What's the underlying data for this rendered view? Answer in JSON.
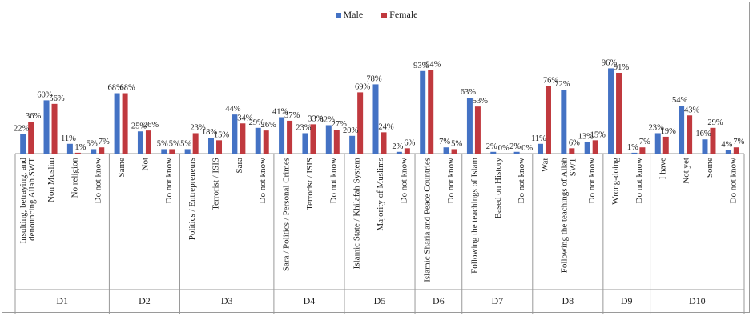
{
  "chart_data": {
    "type": "bar",
    "legend_position": "top-center",
    "series": [
      {
        "name": "Male",
        "color": "#4472C4"
      },
      {
        "name": "Female",
        "color": "#C0393E"
      }
    ],
    "groups": [
      {
        "label": "D1",
        "items": [
          {
            "label": "Insulting, betraying, and denouncing Allah SWT",
            "male": 22,
            "female": 36
          },
          {
            "label": "Non Muslim",
            "male": 60,
            "female": 56
          },
          {
            "label": "No religion",
            "male": 11,
            "female": 1
          },
          {
            "label": "Do not know",
            "male": 5,
            "female": 7
          }
        ]
      },
      {
        "label": "D2",
        "items": [
          {
            "label": "Same",
            "male": 68,
            "female": 68
          },
          {
            "label": "Not",
            "male": 25,
            "female": 26
          },
          {
            "label": "Do not know",
            "male": 5,
            "female": 5
          }
        ]
      },
      {
        "label": "D3",
        "items": [
          {
            "label": "Politics / Entrepreneurs",
            "male": 5,
            "female": 23
          },
          {
            "label": "Terrorist / ISIS",
            "male": 18,
            "female": 15
          },
          {
            "label": "Sara",
            "male": 44,
            "female": 34
          },
          {
            "label": "Do not know",
            "male": 29,
            "female": 26
          }
        ]
      },
      {
        "label": "D4",
        "items": [
          {
            "label": "Sara / Politics / Personal Crimes",
            "male": 41,
            "female": 37
          },
          {
            "label": "Terrorist / ISIS",
            "male": 23,
            "female": 33
          },
          {
            "label": "Do not know",
            "male": 32,
            "female": 27
          }
        ]
      },
      {
        "label": "D5",
        "items": [
          {
            "label": "Islamic State / Khilafah System",
            "male": 20,
            "female": 69
          },
          {
            "label": "Majority of Muslims",
            "male": 78,
            "female": 24
          },
          {
            "label": "Do not know",
            "male": 2,
            "female": 6
          }
        ]
      },
      {
        "label": "D6",
        "items": [
          {
            "label": "Islamic Sharia and Peace Countries",
            "male": 93,
            "female": 94
          },
          {
            "label": "Do not know",
            "male": 7,
            "female": 5
          }
        ]
      },
      {
        "label": "D7",
        "items": [
          {
            "label": "Following the teachings of Islam",
            "male": 63,
            "female": 53
          },
          {
            "label": "Based on History",
            "male": 2,
            "female": 0
          },
          {
            "label": "Do not know",
            "male": 2,
            "female": 0
          }
        ]
      },
      {
        "label": "D8",
        "items": [
          {
            "label": "War",
            "male": 11,
            "female": 76
          },
          {
            "label": "Following the teachings of Allah SWT",
            "male": 72,
            "female": 6
          },
          {
            "label": "Do not know",
            "male": 13,
            "female": 15
          }
        ]
      },
      {
        "label": "D9",
        "items": [
          {
            "label": "Wrong-doing",
            "male": 96,
            "female": 91
          },
          {
            "label": "Do not know",
            "male": 1,
            "female": 7
          }
        ]
      },
      {
        "label": "D10",
        "items": [
          {
            "label": "I have",
            "male": 23,
            "female": 19
          },
          {
            "label": "Not yet",
            "male": 54,
            "female": 43
          },
          {
            "label": "Some",
            "male": 16,
            "female": 29
          },
          {
            "label": "Do not know",
            "male": 4,
            "female": 7
          }
        ]
      }
    ],
    "value_suffix": "%",
    "ylim": [
      0,
      100
    ]
  }
}
